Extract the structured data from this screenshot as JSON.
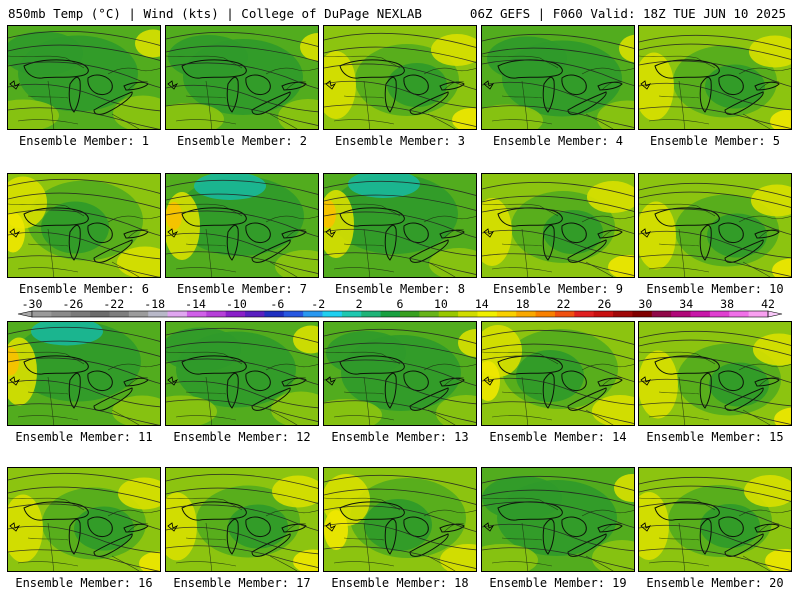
{
  "header": {
    "left": "850mb Temp (°C) | Wind (kts) | College of DuPage NEXLAB",
    "right": "06Z GEFS | F060 Valid: 18Z TUE JUN 10 2025"
  },
  "members": [
    {
      "label": "Ensemble Member: 1",
      "tone": "dark"
    },
    {
      "label": "Ensemble Member: 2",
      "tone": "dark"
    },
    {
      "label": "Ensemble Member: 3",
      "tone": "light"
    },
    {
      "label": "Ensemble Member: 4",
      "tone": "dark"
    },
    {
      "label": "Ensemble Member: 5",
      "tone": "light"
    },
    {
      "label": "Ensemble Member: 6",
      "tone": "mixed"
    },
    {
      "label": "Ensemble Member: 7",
      "tone": "cool"
    },
    {
      "label": "Ensemble Member: 8",
      "tone": "cool"
    },
    {
      "label": "Ensemble Member: 9",
      "tone": "light"
    },
    {
      "label": "Ensemble Member: 10",
      "tone": "light"
    },
    {
      "label": "Ensemble Member: 11",
      "tone": "cool"
    },
    {
      "label": "Ensemble Member: 12",
      "tone": "dark"
    },
    {
      "label": "Ensemble Member: 13",
      "tone": "dark"
    },
    {
      "label": "Ensemble Member: 14",
      "tone": "mixed"
    },
    {
      "label": "Ensemble Member: 15",
      "tone": "light"
    },
    {
      "label": "Ensemble Member: 16",
      "tone": "light"
    },
    {
      "label": "Ensemble Member: 17",
      "tone": "light"
    },
    {
      "label": "Ensemble Member: 18",
      "tone": "mixed"
    },
    {
      "label": "Ensemble Member: 19",
      "tone": "dark"
    },
    {
      "label": "Ensemble Member: 20",
      "tone": "light"
    }
  ],
  "colorbar": {
    "ticks": [
      "-30",
      "-26",
      "-22",
      "-18",
      "-14",
      "-10",
      "-6",
      "-2",
      "2",
      "6",
      "10",
      "14",
      "18",
      "22",
      "26",
      "30",
      "34",
      "38",
      "42"
    ],
    "colors": [
      "#9a9a9a",
      "#8a8a8a",
      "#7a7a7a",
      "#6c6c6c",
      "#7e7e7e",
      "#9c9c9c",
      "#b8b8c8",
      "#e0a6f0",
      "#d060e8",
      "#b640d8",
      "#8a20c8",
      "#5a20c0",
      "#2030c0",
      "#2858e0",
      "#2a98f0",
      "#20d0f0",
      "#20c8b0",
      "#20b478",
      "#18a040",
      "#38a020",
      "#68b418",
      "#98c800",
      "#d0dc00",
      "#f0f000",
      "#f8d000",
      "#f8a800",
      "#f88000",
      "#f05010",
      "#e02020",
      "#c81010",
      "#a00808",
      "#800000",
      "#900848",
      "#b00878",
      "#c818a8",
      "#e040d0",
      "#f070e8",
      "#f8a0f0"
    ]
  },
  "palette": {
    "cool": "#18b89a",
    "dark": "#2f9a2a",
    "mid": "#52ac1e",
    "light": "#8cc410",
    "yellow": "#d8e000",
    "warm": "#f0e800",
    "orange": "#f8c000"
  }
}
